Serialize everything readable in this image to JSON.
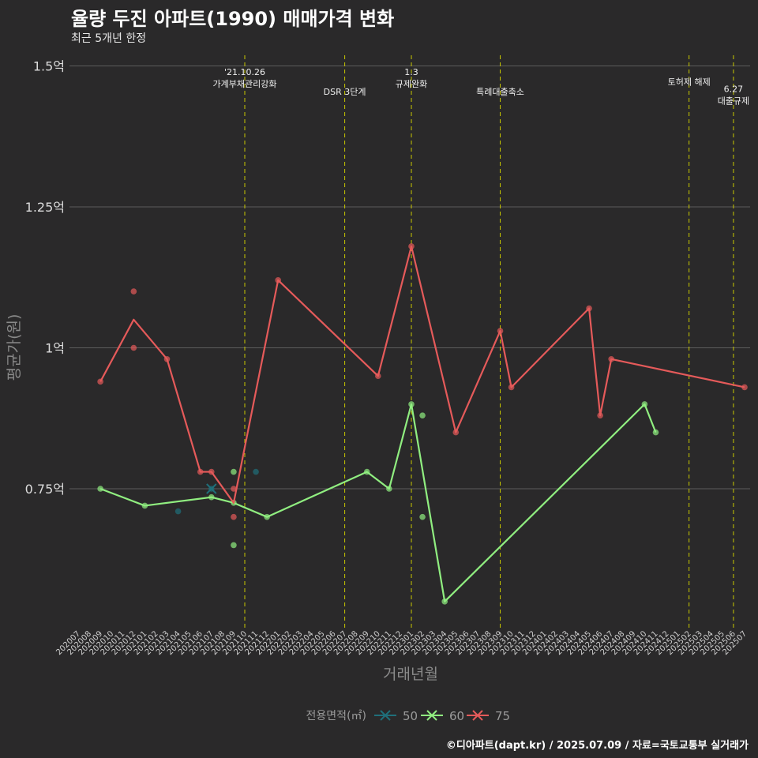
{
  "chart_data": {
    "type": "line",
    "title": "율량 두진 아파트(1990) 매매가격 변화",
    "subtitle": "최근 5개년 한정",
    "xlabel": "거래년월",
    "ylabel": "평균가(원)",
    "legend_title": "전용면적(㎡)",
    "legend_position": "bottom",
    "caption": "©디아파트(dapt.kr) / 2025.07.09 / 자료=국토교통부 실거래가",
    "x_ticks": [
      "202007",
      "202008",
      "202009",
      "202010",
      "202011",
      "202012",
      "202101",
      "202102",
      "202103",
      "202104",
      "202105",
      "202106",
      "202107",
      "202108",
      "202109",
      "202110",
      "202111",
      "202112",
      "202201",
      "202202",
      "202203",
      "202204",
      "202205",
      "202206",
      "202207",
      "202208",
      "202209",
      "202210",
      "202211",
      "202212",
      "202301",
      "202302",
      "202303",
      "202304",
      "202305",
      "202306",
      "202307",
      "202308",
      "202309",
      "202310",
      "202311",
      "202312",
      "202401",
      "202402",
      "202403",
      "202404",
      "202405",
      "202406",
      "202407",
      "202408",
      "202409",
      "202410",
      "202411",
      "202412",
      "202501",
      "202502",
      "202503",
      "202504",
      "202505",
      "202506",
      "202507"
    ],
    "y_ticks": [
      {
        "value": 0.75,
        "label": "0.75억"
      },
      {
        "value": 1.0,
        "label": "1억"
      },
      {
        "value": 1.25,
        "label": "1.25억"
      },
      {
        "value": 1.5,
        "label": "1.5억"
      }
    ],
    "ylim": [
      0.5,
      1.5
    ],
    "grid": "horizontal",
    "series": [
      {
        "name": "50",
        "color": "#1f6f7a",
        "line": [
          [
            "202107",
            0.75
          ]
        ],
        "points": [
          [
            "202104",
            0.71
          ],
          [
            "202107",
            0.75
          ],
          [
            "202111",
            0.78
          ]
        ]
      },
      {
        "name": "60",
        "color": "#90ee80",
        "line": [
          [
            "202009",
            0.75
          ],
          [
            "202101",
            0.72
          ],
          [
            "202107",
            0.735
          ],
          [
            "202109",
            0.725
          ],
          [
            "202112",
            0.7
          ],
          [
            "202209",
            0.78
          ],
          [
            "202211",
            0.75
          ],
          [
            "202301",
            0.9
          ],
          [
            "202304",
            0.55
          ],
          [
            "202410",
            0.9
          ],
          [
            "202411",
            0.85
          ]
        ],
        "points": [
          [
            "202009",
            0.75
          ],
          [
            "202101",
            0.72
          ],
          [
            "202107",
            0.735
          ],
          [
            "202109",
            0.78
          ],
          [
            "202109",
            0.725
          ],
          [
            "202109",
            0.65
          ],
          [
            "202112",
            0.7
          ],
          [
            "202209",
            0.78
          ],
          [
            "202211",
            0.75
          ],
          [
            "202301",
            0.9
          ],
          [
            "202302",
            0.88
          ],
          [
            "202302",
            0.7
          ],
          [
            "202304",
            0.55
          ],
          [
            "202410",
            0.9
          ],
          [
            "202411",
            0.85
          ]
        ]
      },
      {
        "name": "75",
        "color": "#e55a5a",
        "line": [
          [
            "202009",
            0.94
          ],
          [
            "202012",
            1.05
          ],
          [
            "202103",
            0.98
          ],
          [
            "202106",
            0.78
          ],
          [
            "202107",
            0.78
          ],
          [
            "202109",
            0.725
          ],
          [
            "202201",
            1.12
          ],
          [
            "202210",
            0.95
          ],
          [
            "202301",
            1.18
          ],
          [
            "202305",
            0.85
          ],
          [
            "202309",
            1.03
          ],
          [
            "202310",
            0.93
          ],
          [
            "202405",
            1.07
          ],
          [
            "202406",
            0.88
          ],
          [
            "202407",
            0.98
          ],
          [
            "202507",
            0.93
          ]
        ],
        "points": [
          [
            "202009",
            0.94
          ],
          [
            "202012",
            1.1
          ],
          [
            "202012",
            1.0
          ],
          [
            "202103",
            0.98
          ],
          [
            "202106",
            0.78
          ],
          [
            "202107",
            0.78
          ],
          [
            "202109",
            0.75
          ],
          [
            "202109",
            0.7
          ],
          [
            "202201",
            1.12
          ],
          [
            "202210",
            0.95
          ],
          [
            "202301",
            1.18
          ],
          [
            "202305",
            0.85
          ],
          [
            "202309",
            1.03
          ],
          [
            "202310",
            0.93
          ],
          [
            "202405",
            1.07
          ],
          [
            "202406",
            0.88
          ],
          [
            "202407",
            0.98
          ],
          [
            "202507",
            0.93
          ]
        ]
      }
    ],
    "events": [
      {
        "x": "202110",
        "lines": [
          "'21.10.26",
          "가계부채관리강화"
        ],
        "row": 0
      },
      {
        "x": "202207",
        "lines": [
          "DSR 3단계"
        ],
        "row": 2
      },
      {
        "x": "202301",
        "lines": [
          "1.3",
          "규제완화"
        ],
        "row": 0
      },
      {
        "x": "202309",
        "lines": [
          "특례대출축소"
        ],
        "row": 2
      },
      {
        "x": "202502",
        "lines": [
          "토허제 해제"
        ],
        "row": 1
      },
      {
        "x": "202506",
        "lines": [
          "6.27",
          "대출규제"
        ],
        "row": 1.7
      }
    ],
    "event_line_color": "#c8c800"
  }
}
